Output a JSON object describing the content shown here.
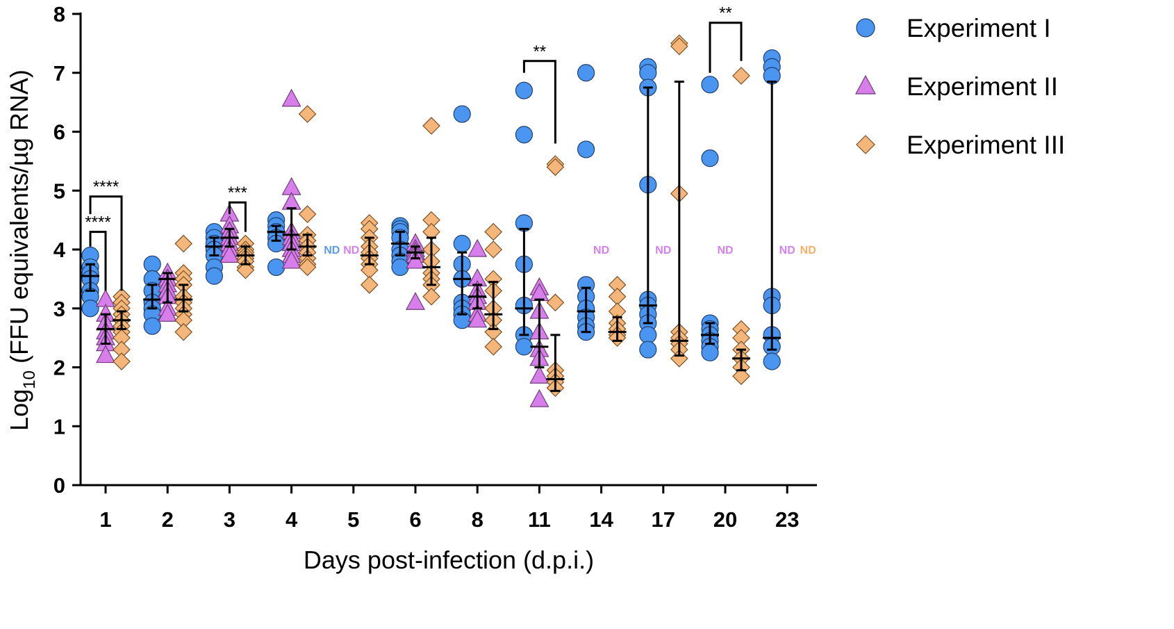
{
  "chart_data": {
    "type": "scatter",
    "xlabel": "Days post-infection (d.p.i.)",
    "ylabel_main": "Log",
    "ylabel_sub": "10",
    "ylabel_rest": " (FFU equivalents/µg RNA)",
    "ylim": [
      0,
      8
    ],
    "yticks": [
      "0",
      "1",
      "2",
      "3",
      "4",
      "5",
      "6",
      "7",
      "8"
    ],
    "categories": [
      "1",
      "2",
      "3",
      "4",
      "5",
      "6",
      "8",
      "11",
      "14",
      "17",
      "20",
      "23"
    ],
    "legend_position": "top-right",
    "nd_label": "ND",
    "series": [
      {
        "name": "Experiment I",
        "marker": "circle",
        "color": "#4A95EF",
        "nd_color": "#5A9BEA",
        "groups": [
          {
            "points": [
              3.9,
              3.7,
              3.6,
              3.5,
              3.3,
              3.2,
              3.0
            ],
            "mean": 3.55,
            "err": [
              3.3,
              3.75
            ]
          },
          {
            "points": [
              3.75,
              3.5,
              3.3,
              3.1,
              3.0,
              2.9,
              2.7
            ],
            "mean": 3.15,
            "err": [
              3.0,
              3.4
            ]
          },
          {
            "points": [
              4.3,
              4.2,
              4.1,
              4.0,
              3.9,
              3.7,
              3.55
            ],
            "mean": 4.05,
            "err": [
              3.9,
              4.2
            ]
          },
          {
            "points": [
              4.5,
              4.4,
              4.3,
              4.2,
              4.1,
              3.7
            ],
            "mean": 4.3,
            "err": [
              4.15,
              4.4
            ]
          },
          null,
          {
            "points": [
              4.4,
              4.35,
              4.3,
              4.2,
              4.0,
              3.9,
              3.8,
              3.7
            ],
            "mean": 4.1,
            "err": [
              3.9,
              4.3
            ]
          },
          {
            "points": [
              6.3,
              4.1,
              3.75,
              3.5,
              3.1,
              3.0,
              2.9,
              2.8
            ],
            "mean": 3.5,
            "err": [
              2.9,
              3.95
            ]
          },
          {
            "points": [
              6.7,
              5.95,
              4.45,
              3.75,
              3.05,
              2.55,
              2.35
            ],
            "mean": 3.0,
            "err": [
              2.55,
              4.35
            ]
          },
          {
            "points": [
              7.0,
              5.7,
              3.4,
              3.2,
              3.0,
              2.85,
              2.7,
              2.6
            ],
            "mean": 2.95,
            "err": [
              2.6,
              3.35
            ]
          },
          {
            "points": [
              7.1,
              7.0,
              6.75,
              5.1,
              3.15,
              3.05,
              2.9,
              2.75,
              2.55,
              2.3
            ],
            "mean": 3.05,
            "err": [
              2.75,
              6.75
            ]
          },
          {
            "points": [
              6.8,
              5.55,
              2.75,
              2.65,
              2.55,
              2.45,
              2.35,
              2.25
            ],
            "mean": 2.55,
            "err": [
              2.4,
              2.75
            ]
          },
          {
            "points": [
              7.25,
              7.1,
              6.95,
              3.2,
              3.05,
              2.55,
              2.35,
              2.1
            ],
            "mean": 2.5,
            "err": [
              2.3,
              6.85
            ]
          }
        ]
      },
      {
        "name": "Experiment II",
        "marker": "triangle",
        "color": "#D87EEB",
        "nd_color": "#D580F0",
        "groups": [
          {
            "points": [
              3.15,
              2.9,
              2.75,
              2.6,
              2.5,
              2.4,
              2.2
            ],
            "mean": 2.65,
            "err": [
              2.4,
              2.9
            ]
          },
          {
            "points": [
              3.6,
              3.5,
              3.4,
              3.3,
              3.2,
              3.0,
              2.9
            ],
            "mean": 3.5,
            "err": [
              3.1,
              3.6
            ]
          },
          {
            "points": [
              4.6,
              4.4,
              4.3,
              4.2,
              4.1,
              4.0,
              3.9
            ],
            "mean": 4.2,
            "err": [
              4.05,
              4.35
            ]
          },
          {
            "points": [
              6.55,
              5.05,
              4.8,
              4.3,
              4.2,
              4.1,
              4.0,
              3.9,
              3.8
            ],
            "mean": 4.25,
            "err": [
              4.0,
              4.7
            ]
          },
          null,
          {
            "points": [
              4.1,
              4.0,
              3.95,
              3.9,
              3.8,
              3.1
            ],
            "mean": 3.95,
            "err": [
              3.85,
              4.05
            ]
          },
          {
            "points": [
              4.0,
              3.5,
              3.3,
              3.2,
              3.1,
              2.9,
              2.8
            ],
            "mean": 3.2,
            "err": [
              3.0,
              3.4
            ]
          },
          {
            "points": [
              3.35,
              3.25,
              2.95,
              2.6,
              2.3,
              2.15,
              1.85,
              1.45
            ],
            "mean": 2.35,
            "err": [
              2.0,
              3.15
            ]
          },
          null,
          null,
          null,
          null
        ]
      },
      {
        "name": "Experiment III",
        "marker": "diamond",
        "color": "#F4B67A",
        "nd_color": "#F4B06A",
        "groups": [
          {
            "points": [
              3.2,
              3.1,
              3.0,
              2.9,
              2.8,
              2.7,
              2.6,
              2.5,
              2.3,
              2.1
            ],
            "mean": 2.8,
            "err": [
              2.65,
              2.95
            ]
          },
          {
            "points": [
              4.1,
              3.6,
              3.5,
              3.4,
              3.2,
              3.1,
              3.0,
              2.9,
              2.8,
              2.6
            ],
            "mean": 3.15,
            "err": [
              2.95,
              3.4
            ]
          },
          {
            "points": [
              4.1,
              4.0,
              3.95,
              3.9,
              3.85,
              3.8,
              3.7,
              3.65
            ],
            "mean": 3.9,
            "err": [
              3.75,
              4.05
            ]
          },
          {
            "points": [
              6.3,
              4.6,
              4.25,
              4.15,
              4.05,
              3.95,
              3.85,
              3.75,
              3.7
            ],
            "mean": 4.05,
            "err": [
              3.9,
              4.25
            ]
          },
          {
            "points": [
              4.45,
              4.35,
              4.2,
              4.05,
              3.95,
              3.85,
              3.75,
              3.65,
              3.4
            ],
            "mean": 3.9,
            "err": [
              3.75,
              4.2
            ]
          },
          {
            "points": [
              6.1,
              4.5,
              4.3,
              4.0,
              3.8,
              3.6,
              3.5,
              3.4,
              3.2
            ],
            "mean": 3.7,
            "err": [
              3.4,
              4.2
            ]
          },
          {
            "points": [
              4.3,
              4.0,
              3.5,
              3.3,
              3.0,
              2.8,
              2.6,
              2.35
            ],
            "mean": 2.9,
            "err": [
              2.65,
              3.45
            ]
          },
          {
            "points": [
              5.45,
              5.4,
              3.1,
              1.95,
              1.85,
              1.75,
              1.65
            ],
            "mean": 1.8,
            "err": [
              1.6,
              2.55
            ]
          },
          {
            "points": [
              3.4,
              3.2,
              2.95,
              2.75,
              2.65,
              2.55,
              2.5
            ],
            "mean": 2.6,
            "err": [
              2.45,
              2.85
            ]
          },
          {
            "points": [
              7.5,
              7.45,
              4.95,
              2.6,
              2.5,
              2.4,
              2.3,
              2.15
            ],
            "mean": 2.45,
            "err": [
              2.2,
              6.85
            ]
          },
          {
            "points": [
              6.95,
              2.65,
              2.5,
              2.3,
              2.15,
              2.0,
              1.85
            ],
            "mean": 2.15,
            "err": [
              1.95,
              2.3
            ]
          },
          null
        ]
      }
    ],
    "significance": [
      {
        "category": "1",
        "from": 0,
        "to": 1,
        "label": "****",
        "top": 4.3,
        "left_end": 4.05,
        "right_end": 3.3
      },
      {
        "category": "1",
        "from": 0,
        "to": 2,
        "label": "****",
        "top": 4.9,
        "left_end": 4.6,
        "right_end": 3.3
      },
      {
        "category": "3",
        "from": 1,
        "to": 2,
        "label": "***",
        "top": 4.8,
        "left_end": 4.6,
        "right_end": 4.3
      },
      {
        "category": "11",
        "from": 0,
        "to": 2,
        "label": "**",
        "top": 7.2,
        "left_end": 7.0,
        "right_end": 5.8
      },
      {
        "category": "20",
        "from": 0,
        "to": 2,
        "label": "**",
        "top": 7.85,
        "left_end": 7.0,
        "right_end": 7.2
      }
    ]
  }
}
